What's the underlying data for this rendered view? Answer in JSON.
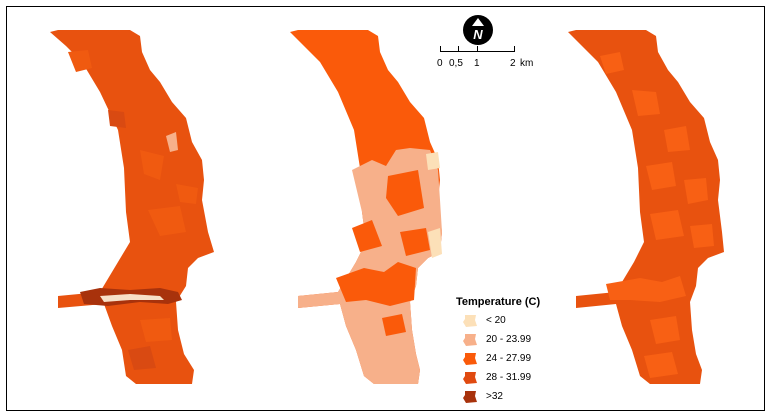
{
  "north_arrow": {
    "letter": "N",
    "icon": "north-arrow-icon"
  },
  "scale_bar": {
    "labels": [
      "0",
      "0,5",
      "1",
      "2"
    ],
    "unit": "km"
  },
  "legend": {
    "title": "Temperature (C)",
    "items": [
      {
        "label": "< 20",
        "color": "#fce0b8"
      },
      {
        "label": "20 - 23.99",
        "color": "#f7b08a"
      },
      {
        "label": "24 - 27.99",
        "color": "#fa5a0a"
      },
      {
        "label": "28 - 31.99",
        "color": "#e04a10"
      },
      {
        "label": ">32",
        "color": "#a8320c"
      }
    ]
  },
  "colors": {
    "dominant_left": "#e8520f",
    "dominant_middle": "#fa5a0a",
    "dominant_right": "#e8520f",
    "cool_patch": "#f7b08a",
    "hot_patch": "#a8320c"
  }
}
